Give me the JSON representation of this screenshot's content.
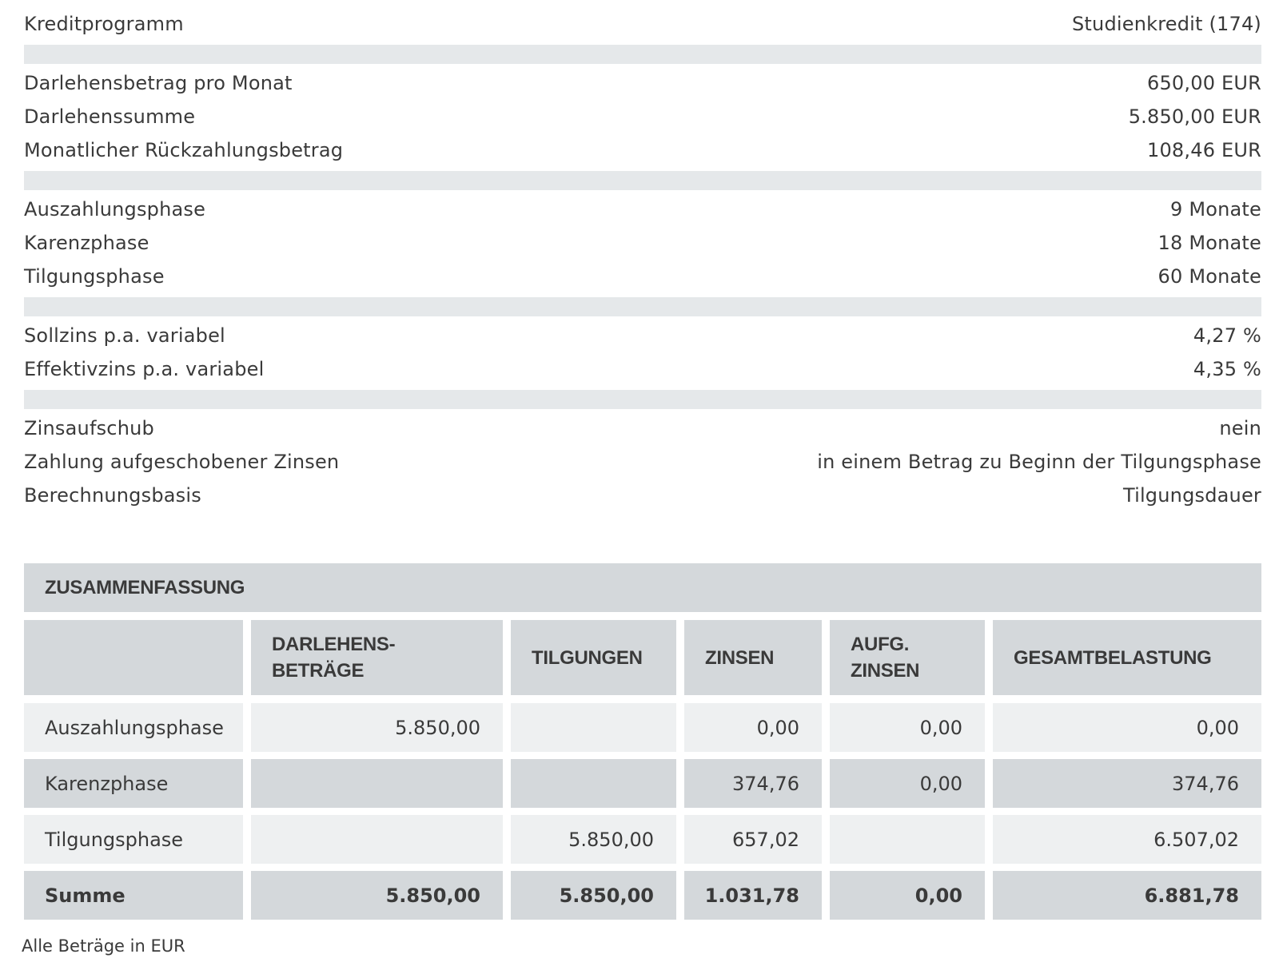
{
  "rows": [
    {
      "label": "Kreditprogramm",
      "value": "Studienkredit (174)"
    },
    {
      "label": "Darlehensbetrag pro Monat",
      "value": "650,00 EUR"
    },
    {
      "label": "Darlehenssumme",
      "value": "5.850,00 EUR"
    },
    {
      "label": "Monatlicher Rückzahlungsbetrag",
      "value": "108,46 EUR"
    },
    {
      "label": "Auszahlungsphase",
      "value": "9 Monate"
    },
    {
      "label": "Karenzphase",
      "value": "18 Monate"
    },
    {
      "label": "Tilgungsphase",
      "value": "60 Monate"
    },
    {
      "label": "Sollzins p.a. variabel",
      "value": "4,27 %"
    },
    {
      "label": "Effektivzins p.a. variabel",
      "value": "4,35 %"
    },
    {
      "label": "Zinsaufschub",
      "value": "nein"
    },
    {
      "label": "Zahlung aufgeschobener Zinsen",
      "value": "in einem Betrag zu Beginn der Tilgungsphase"
    },
    {
      "label": "Berechnungsbasis",
      "value": "Tilgungsdauer"
    }
  ],
  "summary": {
    "title": "ZUSAMMENFASSUNG",
    "headers": [
      "",
      "DARLEHENS-\nBETRÄGE",
      "TILGUNGEN",
      "ZINSEN",
      "AUFG.\nZINSEN",
      "GESAMTBELASTUNG"
    ],
    "table": [
      {
        "cells": [
          "Auszahlungsphase",
          "5.850,00",
          "",
          "0,00",
          "0,00",
          "0,00"
        ]
      },
      {
        "cells": [
          "Karenzphase",
          "",
          "",
          "374,76",
          "0,00",
          "374,76"
        ]
      },
      {
        "cells": [
          "Tilgungsphase",
          "",
          "5.850,00",
          "657,02",
          "",
          "6.507,02"
        ]
      },
      {
        "cells": [
          "Summe",
          "5.850,00",
          "5.850,00",
          "1.031,78",
          "0,00",
          "6.881,78"
        ]
      }
    ]
  },
  "footnote": "Alle Beträge in EUR",
  "colors": {
    "light_cell": "#eef0f1",
    "dark_cell": "#d4d8db",
    "separator": "#e5e8ea",
    "text": "#3a3a3a"
  }
}
